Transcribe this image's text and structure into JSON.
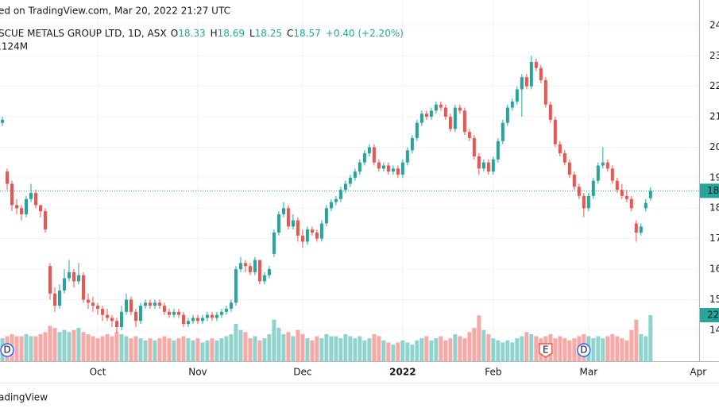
{
  "chart_data": {
    "type": "candlestick",
    "header": "ed on TradingView.com, Mar 20, 2022 21:27 UTC",
    "symbol": "SCUE METALS GROUP LTD, 1D, ASX",
    "ohlc_labels": [
      "O",
      "H",
      "L",
      "C"
    ],
    "change": "+0.40 (+2.20%)",
    "volume_label": ".124M",
    "price_label": "18",
    "volume_axis_label": "22",
    "footer": "adingView",
    "up_color": "#26a69a",
    "down_color": "#ef5350",
    "grid": true,
    "ylim": [
      12.98,
      24.83
    ],
    "yticks": [
      14,
      15,
      16,
      17,
      18,
      19,
      20,
      21,
      22,
      23,
      24
    ],
    "xlim": [
      -0.5,
      146.2
    ],
    "xticks": [
      {
        "value": 20,
        "label": "Oct"
      },
      {
        "value": 41,
        "label": "Nov"
      },
      {
        "value": 63,
        "label": "Dec"
      },
      {
        "value": 84,
        "label": "2022"
      },
      {
        "value": 103,
        "label": "Feb"
      },
      {
        "value": 123,
        "label": "Mar"
      },
      {
        "value": 146,
        "label": "Apr"
      }
    ],
    "events": [
      {
        "x": 1,
        "label": "D"
      },
      {
        "x": 114,
        "label": "E"
      },
      {
        "x": 122,
        "label": "D"
      }
    ],
    "ohlc": [
      [
        20.8,
        21.0,
        20.7,
        20.9
      ],
      [
        19.2,
        19.3,
        18.6,
        18.8
      ],
      [
        18.8,
        18.9,
        17.9,
        18.1
      ],
      [
        18.1,
        18.3,
        17.8,
        18.0
      ],
      [
        18.0,
        18.1,
        17.6,
        17.8
      ],
      [
        17.8,
        18.4,
        17.7,
        18.3
      ],
      [
        18.3,
        18.8,
        18.2,
        18.5
      ],
      [
        18.5,
        18.6,
        18.0,
        18.1
      ],
      [
        18.1,
        18.1,
        17.7,
        17.9
      ],
      [
        17.9,
        18.0,
        17.2,
        17.3
      ],
      [
        16.1,
        16.2,
        15.0,
        15.2
      ],
      [
        15.2,
        15.4,
        14.6,
        14.8
      ],
      [
        14.8,
        15.5,
        14.7,
        15.3
      ],
      [
        15.3,
        16.0,
        15.2,
        15.7
      ],
      [
        15.7,
        16.3,
        15.6,
        15.9
      ],
      [
        15.9,
        16.0,
        15.4,
        15.6
      ],
      [
        15.6,
        16.2,
        15.5,
        15.8
      ],
      [
        15.8,
        15.9,
        14.9,
        15.0
      ],
      [
        15.0,
        15.2,
        14.7,
        14.9
      ],
      [
        14.9,
        15.1,
        14.6,
        14.8
      ],
      [
        14.8,
        14.9,
        14.5,
        14.7
      ],
      [
        14.7,
        14.8,
        14.3,
        14.5
      ],
      [
        14.5,
        14.7,
        14.3,
        14.4
      ],
      [
        14.4,
        14.5,
        14.1,
        14.3
      ],
      [
        14.3,
        14.4,
        13.9,
        14.1
      ],
      [
        14.1,
        14.8,
        14.0,
        14.6
      ],
      [
        14.6,
        15.2,
        14.5,
        15.0
      ],
      [
        15.0,
        15.1,
        14.5,
        14.6
      ],
      [
        14.6,
        14.7,
        14.1,
        14.3
      ],
      [
        14.3,
        14.9,
        14.2,
        14.8
      ],
      [
        14.8,
        15.0,
        14.7,
        14.9
      ],
      [
        14.9,
        15.0,
        14.7,
        14.8
      ],
      [
        14.8,
        15.0,
        14.7,
        14.9
      ],
      [
        14.9,
        15.0,
        14.7,
        14.8
      ],
      [
        14.8,
        14.9,
        14.5,
        14.6
      ],
      [
        14.6,
        14.7,
        14.4,
        14.5
      ],
      [
        14.5,
        14.7,
        14.4,
        14.6
      ],
      [
        14.6,
        14.7,
        14.4,
        14.5
      ],
      [
        14.5,
        14.6,
        14.1,
        14.2
      ],
      [
        14.2,
        14.4,
        14.1,
        14.3
      ],
      [
        14.3,
        14.5,
        14.2,
        14.4
      ],
      [
        14.4,
        14.5,
        14.2,
        14.3
      ],
      [
        14.3,
        14.5,
        14.2,
        14.4
      ],
      [
        14.4,
        14.6,
        14.3,
        14.5
      ],
      [
        14.5,
        14.6,
        14.3,
        14.4
      ],
      [
        14.4,
        14.6,
        14.3,
        14.5
      ],
      [
        14.5,
        14.7,
        14.4,
        14.6
      ],
      [
        14.6,
        14.8,
        14.5,
        14.7
      ],
      [
        14.7,
        15.0,
        14.6,
        14.9
      ],
      [
        14.9,
        16.1,
        14.8,
        16.0
      ],
      [
        16.0,
        16.4,
        15.9,
        16.2
      ],
      [
        16.2,
        16.3,
        15.9,
        16.1
      ],
      [
        16.1,
        16.2,
        15.8,
        15.9
      ],
      [
        15.9,
        16.4,
        15.8,
        16.3
      ],
      [
        16.3,
        16.3,
        15.5,
        15.6
      ],
      [
        15.6,
        15.9,
        15.5,
        15.8
      ],
      [
        15.8,
        16.1,
        15.7,
        16.0
      ],
      [
        16.5,
        17.3,
        16.4,
        17.2
      ],
      [
        17.2,
        17.9,
        17.1,
        17.8
      ],
      [
        17.8,
        18.2,
        17.7,
        18.0
      ],
      [
        18.0,
        18.1,
        17.3,
        17.4
      ],
      [
        17.4,
        17.8,
        17.3,
        17.6
      ],
      [
        17.6,
        17.7,
        16.9,
        17.1
      ],
      [
        17.1,
        17.3,
        16.7,
        16.9
      ],
      [
        16.9,
        17.4,
        16.8,
        17.3
      ],
      [
        17.3,
        17.4,
        17.1,
        17.2
      ],
      [
        17.2,
        17.3,
        16.9,
        17.0
      ],
      [
        17.0,
        17.6,
        16.9,
        17.5
      ],
      [
        17.5,
        18.1,
        17.4,
        18.0
      ],
      [
        18.0,
        18.3,
        17.9,
        18.2
      ],
      [
        18.2,
        18.4,
        18.1,
        18.3
      ],
      [
        18.3,
        18.7,
        18.2,
        18.6
      ],
      [
        18.6,
        18.9,
        18.5,
        18.8
      ],
      [
        18.8,
        19.1,
        18.7,
        19.0
      ],
      [
        19.0,
        19.3,
        18.9,
        19.2
      ],
      [
        19.2,
        19.6,
        19.1,
        19.5
      ],
      [
        19.5,
        19.9,
        19.4,
        19.8
      ],
      [
        19.8,
        20.1,
        19.7,
        20.0
      ],
      [
        20.0,
        20.1,
        19.4,
        19.5
      ],
      [
        19.5,
        19.6,
        19.2,
        19.3
      ],
      [
        19.3,
        19.5,
        19.2,
        19.4
      ],
      [
        19.4,
        19.5,
        19.1,
        19.2
      ],
      [
        19.2,
        19.4,
        19.1,
        19.3
      ],
      [
        19.3,
        19.4,
        19.0,
        19.1
      ],
      [
        19.1,
        19.6,
        19.0,
        19.5
      ],
      [
        19.5,
        20.0,
        19.4,
        19.9
      ],
      [
        19.9,
        20.4,
        19.8,
        20.3
      ],
      [
        20.3,
        20.9,
        20.2,
        20.8
      ],
      [
        20.8,
        21.2,
        20.7,
        21.1
      ],
      [
        21.1,
        21.2,
        20.9,
        21.0
      ],
      [
        21.0,
        21.3,
        20.9,
        21.2
      ],
      [
        21.2,
        21.5,
        21.1,
        21.4
      ],
      [
        21.4,
        21.5,
        21.2,
        21.3
      ],
      [
        21.3,
        21.4,
        20.9,
        21.0
      ],
      [
        21.0,
        21.1,
        20.5,
        20.6
      ],
      [
        20.6,
        21.4,
        20.5,
        21.3
      ],
      [
        21.3,
        21.4,
        21.1,
        21.2
      ],
      [
        21.2,
        21.3,
        20.4,
        20.5
      ],
      [
        20.5,
        20.6,
        20.2,
        20.3
      ],
      [
        20.3,
        20.4,
        19.6,
        19.7
      ],
      [
        19.7,
        19.8,
        19.1,
        19.3
      ],
      [
        19.3,
        19.6,
        19.2,
        19.5
      ],
      [
        19.5,
        19.6,
        19.1,
        19.2
      ],
      [
        19.2,
        19.7,
        19.1,
        19.6
      ],
      [
        19.6,
        20.3,
        19.5,
        20.2
      ],
      [
        20.2,
        20.9,
        20.1,
        20.8
      ],
      [
        20.8,
        21.4,
        20.7,
        21.3
      ],
      [
        21.3,
        21.6,
        21.2,
        21.5
      ],
      [
        21.5,
        22.0,
        21.4,
        21.9
      ],
      [
        21.9,
        22.4,
        21.0,
        22.3
      ],
      [
        22.3,
        22.4,
        21.9,
        22.0
      ],
      [
        22.0,
        23.0,
        21.9,
        22.8
      ],
      [
        22.8,
        22.9,
        22.5,
        22.6
      ],
      [
        22.6,
        22.7,
        22.1,
        22.2
      ],
      [
        22.2,
        22.3,
        21.3,
        21.4
      ],
      [
        21.4,
        21.5,
        20.8,
        20.9
      ],
      [
        20.9,
        21.0,
        20.0,
        20.1
      ],
      [
        20.1,
        20.2,
        19.7,
        19.8
      ],
      [
        19.8,
        19.9,
        19.4,
        19.5
      ],
      [
        19.5,
        19.6,
        19.0,
        19.1
      ],
      [
        19.1,
        19.2,
        18.6,
        18.7
      ],
      [
        18.7,
        18.8,
        18.3,
        18.4
      ],
      [
        18.4,
        18.5,
        17.7,
        18.0
      ],
      [
        18.0,
        18.5,
        17.9,
        18.4
      ],
      [
        18.4,
        19.0,
        18.3,
        18.9
      ],
      [
        18.9,
        19.5,
        18.8,
        19.4
      ],
      [
        19.4,
        20.0,
        19.3,
        19.5
      ],
      [
        19.5,
        19.6,
        19.2,
        19.3
      ],
      [
        19.3,
        19.4,
        18.8,
        18.9
      ],
      [
        18.9,
        19.0,
        18.5,
        18.6
      ],
      [
        18.6,
        18.8,
        18.3,
        18.4
      ],
      [
        18.4,
        18.6,
        18.2,
        18.3
      ],
      [
        18.3,
        18.4,
        17.9,
        18.0
      ],
      [
        17.5,
        17.6,
        16.9,
        17.2
      ],
      [
        17.2,
        17.5,
        17.1,
        17.4
      ],
      [
        18.0,
        18.3,
        17.9,
        18.17
      ],
      [
        18.33,
        18.69,
        18.25,
        18.57
      ]
    ],
    "volume": [
      11,
      12,
      13,
      12,
      12,
      13,
      12,
      12,
      13,
      14,
      17,
      16,
      14,
      15,
      14,
      15,
      16,
      14,
      13,
      12,
      11,
      12,
      13,
      12,
      14,
      13,
      12,
      11,
      12,
      11,
      10,
      11,
      10,
      11,
      12,
      11,
      10,
      11,
      12,
      11,
      10,
      11,
      9,
      10,
      11,
      10,
      11,
      12,
      13,
      18,
      15,
      14,
      11,
      12,
      10,
      11,
      13,
      20,
      16,
      13,
      14,
      12,
      15,
      13,
      11,
      10,
      12,
      11,
      13,
      12,
      12,
      11,
      13,
      12,
      11,
      12,
      10,
      11,
      13,
      12,
      10,
      9,
      8,
      9,
      10,
      9,
      8,
      10,
      11,
      12,
      10,
      11,
      12,
      10,
      11,
      13,
      12,
      11,
      14,
      16,
      22,
      15,
      13,
      11,
      10,
      9,
      10,
      9,
      11,
      12,
      14,
      13,
      12,
      11,
      12,
      13,
      11,
      12,
      11,
      10,
      11,
      12,
      13,
      12,
      11,
      12,
      11,
      12,
      13,
      12,
      11,
      10,
      15,
      20,
      13,
      12,
      22.124
    ]
  }
}
